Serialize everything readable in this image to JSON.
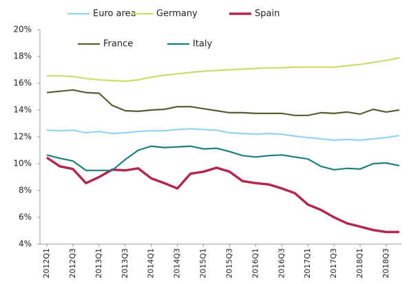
{
  "chart_data": {
    "type": "line",
    "categories": [
      "2012Q1",
      null,
      "2012Q3",
      null,
      "2013Q1",
      null,
      "2013Q3",
      null,
      "2014Q1",
      null,
      "2014Q3",
      null,
      "2015Q1",
      null,
      "2015Q3",
      null,
      "2016Q1",
      null,
      "2016Q3",
      null,
      "2017Q1",
      null,
      "2017Q3",
      null,
      "2018Q1",
      null,
      "2018Q3",
      null
    ],
    "series": [
      {
        "name": "Euro area",
        "color": "#93d3f2",
        "values": [
          12.5,
          12.45,
          12.5,
          12.3,
          12.4,
          12.25,
          12.3,
          12.4,
          12.45,
          12.45,
          12.55,
          12.6,
          12.55,
          12.5,
          12.3,
          12.25,
          12.2,
          12.25,
          12.2,
          12.05,
          11.95,
          11.85,
          11.75,
          11.8,
          11.75,
          11.85,
          11.95,
          12.1
        ]
      },
      {
        "name": "Germany",
        "color": "#c5de6e",
        "values": [
          16.55,
          16.55,
          16.5,
          16.35,
          16.25,
          16.2,
          16.15,
          16.25,
          16.45,
          16.6,
          16.7,
          16.8,
          16.9,
          16.95,
          17.0,
          17.05,
          17.1,
          17.15,
          17.15,
          17.2,
          17.2,
          17.2,
          17.2,
          17.3,
          17.4,
          17.55,
          17.7,
          17.9
        ]
      },
      {
        "name": "Spain",
        "color": "#b3294e",
        "values": [
          10.45,
          9.8,
          9.6,
          8.55,
          9.0,
          9.55,
          9.5,
          9.65,
          8.9,
          8.55,
          8.15,
          9.25,
          9.4,
          9.7,
          9.4,
          8.7,
          8.55,
          8.45,
          8.15,
          7.8,
          6.95,
          6.55,
          6.0,
          5.55,
          5.3,
          5.05,
          4.9,
          4.9
        ]
      },
      {
        "name": "France",
        "color": "#5b5b34",
        "values": [
          15.3,
          15.4,
          15.5,
          15.3,
          15.25,
          14.35,
          13.95,
          13.9,
          14.0,
          14.05,
          14.25,
          14.25,
          14.1,
          13.95,
          13.8,
          13.8,
          13.75,
          13.75,
          13.75,
          13.6,
          13.6,
          13.8,
          13.75,
          13.85,
          13.7,
          14.05,
          13.85,
          14.0
        ]
      },
      {
        "name": "Italy",
        "color": "#1b7d7d",
        "values": [
          10.65,
          10.4,
          10.2,
          9.5,
          9.5,
          9.5,
          10.3,
          11.0,
          11.3,
          11.2,
          11.25,
          11.3,
          11.1,
          11.15,
          10.9,
          10.6,
          10.5,
          10.6,
          10.65,
          10.5,
          10.35,
          9.8,
          9.55,
          9.65,
          9.6,
          10.0,
          10.05,
          9.85
        ]
      }
    ],
    "ylim": [
      4,
      20
    ],
    "yticks": [
      {
        "value": 4,
        "label": "4%"
      },
      {
        "value": 6,
        "label": "6%"
      },
      {
        "value": 8,
        "label": "8%"
      },
      {
        "value": 10,
        "label": "10%"
      },
      {
        "value": 12,
        "label": "12%"
      },
      {
        "value": 14,
        "label": "14%"
      },
      {
        "value": 16,
        "label": "16%"
      },
      {
        "value": 18,
        "label": "18%"
      },
      {
        "value": 20,
        "label": "20%"
      }
    ],
    "grid": false,
    "legend": "top"
  }
}
